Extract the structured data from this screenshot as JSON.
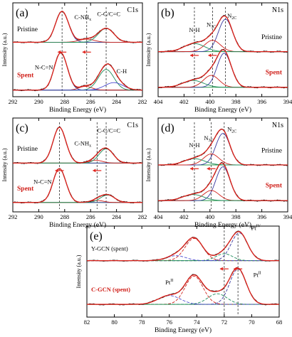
{
  "chart_data": [
    {
      "type": "line",
      "panel_label": "(a)",
      "element": "C1s",
      "xlabel": "Binding Energy (eV)",
      "ylabel": "Intensity (a.u.)",
      "xlim": [
        292,
        282
      ],
      "xticks": [
        292,
        290,
        288,
        286,
        284,
        282
      ],
      "peak_positions": [
        288.2,
        286.3,
        284.8
      ],
      "peak_labels": [
        {
          "text": "N-C=N",
          "x": 289.6,
          "trace": 1,
          "rel_y": 0.55
        },
        {
          "text": "C-NH",
          "sub": "x",
          "x": 286.6,
          "trace": 0,
          "rel_y": 0.75
        },
        {
          "text": "C-C/C=C",
          "x": 284.6,
          "trace": 0,
          "rel_y": 0.85
        },
        {
          "text": "C-H",
          "x": 283.6,
          "trace": 1,
          "rel_y": 0.45
        }
      ],
      "series": [
        {
          "name": "Pristine",
          "label_color": "#000000",
          "peaks": [
            [
              288.2,
              1.0,
              0.5
            ],
            [
              286.3,
              0.1,
              0.6
            ],
            [
              284.8,
              0.45,
              0.6
            ]
          ]
        },
        {
          "name": "Spent",
          "label_color": "#d0201a",
          "peaks": [
            [
              288.3,
              1.0,
              0.5
            ],
            [
              286.4,
              0.1,
              0.5
            ],
            [
              284.8,
              0.55,
              0.6
            ],
            [
              284.2,
              0.2,
              0.7
            ]
          ]
        }
      ]
    },
    {
      "type": "line",
      "panel_label": "(b)",
      "element": "N1s",
      "xlabel": "Binding Energy (eV)",
      "ylabel": "Intensity (a.u.)",
      "xlim": [
        404,
        394
      ],
      "xticks": [
        404,
        402,
        400,
        398,
        396,
        394
      ],
      "peak_positions": [
        401.2,
        399.8,
        398.8
      ],
      "peak_labels": [
        {
          "text": "N-H",
          "x": 401.2,
          "trace": 0,
          "rel_y": 0.55
        },
        {
          "text": "N",
          "sub": "3C",
          "x": 399.9,
          "trace": 0,
          "rel_y": 0.7
        },
        {
          "text": "N",
          "sub": "2C",
          "x": 398.3,
          "trace": 0,
          "rel_y": 0.95
        }
      ],
      "series": [
        {
          "name": "Pristine",
          "label_color": "#000000",
          "peaks": [
            [
              398.8,
              1.0,
              0.55
            ],
            [
              399.8,
              0.35,
              0.6
            ],
            [
              401.2,
              0.25,
              0.8
            ]
          ]
        },
        {
          "name": "Spent",
          "label_color": "#d0201a",
          "peaks": [
            [
              398.9,
              1.0,
              0.55
            ],
            [
              399.9,
              0.35,
              0.6
            ],
            [
              401.3,
              0.2,
              0.8
            ]
          ]
        }
      ]
    },
    {
      "type": "line",
      "panel_label": "(c)",
      "element": "C1s",
      "xlabel": "Binding Energy (eV)",
      "ylabel": "Intensity (a.u.)",
      "xlim": [
        292,
        282
      ],
      "xticks": [
        292,
        290,
        288,
        286,
        284,
        282
      ],
      "peak_positions": [
        288.4,
        285.5,
        284.8
      ],
      "peak_labels": [
        {
          "text": "C-NH",
          "sub": "x",
          "x": 286.6,
          "trace": 0,
          "rel_y": 0.5
        },
        {
          "text": "C-C/C=C",
          "x": 284.6,
          "trace": 0,
          "rel_y": 0.85
        },
        {
          "text": "N-C=N",
          "x": 289.7,
          "trace": 1,
          "rel_y": 0.55
        }
      ],
      "series": [
        {
          "name": "Pristine",
          "label_color": "#000000",
          "peaks": [
            [
              288.4,
              1.0,
              0.5
            ],
            [
              285.6,
              0.08,
              0.5
            ],
            [
              284.8,
              0.4,
              0.55
            ]
          ]
        },
        {
          "name": "Spent",
          "label_color": "#d0201a",
          "peaks": [
            [
              288.4,
              1.0,
              0.5
            ],
            [
              285.5,
              0.06,
              0.5
            ],
            [
              284.7,
              0.22,
              0.55
            ]
          ]
        }
      ]
    },
    {
      "type": "line",
      "panel_label": "(d)",
      "element": "N1s",
      "xlabel": "Binding Energy (eV)",
      "ylabel": "Intensity (a.u.)",
      "xlim": [
        404,
        394
      ],
      "xticks": [
        404,
        402,
        400,
        398,
        396,
        394
      ],
      "peak_positions": [
        401.2,
        399.9,
        398.9
      ],
      "peak_labels": [
        {
          "text": "N-H",
          "x": 401.2,
          "trace": 0,
          "rel_y": 0.5
        },
        {
          "text": "N",
          "sub": "3C",
          "x": 400.1,
          "trace": 0,
          "rel_y": 0.7
        },
        {
          "text": "N",
          "sub": "2C",
          "x": 398.3,
          "trace": 0,
          "rel_y": 0.95
        }
      ],
      "series": [
        {
          "name": "Pristine",
          "label_color": "#000000",
          "peaks": [
            [
              399.0,
              1.0,
              0.55
            ],
            [
              399.9,
              0.35,
              0.6
            ],
            [
              401.2,
              0.2,
              0.8
            ]
          ]
        },
        {
          "name": "Spent",
          "label_color": "#d0201a",
          "peaks": [
            [
              399.0,
              1.0,
              0.55
            ],
            [
              399.9,
              0.3,
              0.6
            ],
            [
              401.3,
              0.18,
              0.8
            ]
          ]
        }
      ]
    },
    {
      "type": "line",
      "panel_label": "(e)",
      "element": "",
      "xlabel": "Binding Energy (eV)",
      "ylabel": "Intensity (a.u.)",
      "xlim": [
        82,
        68
      ],
      "xticks": [
        82,
        80,
        78,
        76,
        74,
        72,
        70,
        68
      ],
      "peak_positions": [
        72.0,
        71.0
      ],
      "peak_labels": [
        {
          "text": "Pt",
          "sup": "IV",
          "x": 69.7,
          "trace": 0,
          "rel_y": 1.05
        },
        {
          "text": "Pt",
          "sup": "II",
          "x": 76.0,
          "trace": 1,
          "rel_y": 0.55
        },
        {
          "text": "Pt",
          "sup": "II",
          "x": 69.6,
          "trace": 1,
          "rel_y": 0.75
        }
      ],
      "series": [
        {
          "name": "Y-GCN (spent)",
          "label_color": "#000000",
          "peaks": [
            [
              70.9,
              1.0,
              0.6
            ],
            [
              74.2,
              0.8,
              0.65
            ],
            [
              72.0,
              0.25,
              0.6
            ],
            [
              75.5,
              0.18,
              0.7
            ]
          ]
        },
        {
          "name": "C-GCN (spent)",
          "label_color": "#d0201a",
          "peaks": [
            [
              71.0,
              1.0,
              0.6
            ],
            [
              74.2,
              0.8,
              0.65
            ],
            [
              72.5,
              0.3,
              0.7
            ],
            [
              76.0,
              0.25,
              0.8
            ]
          ]
        }
      ]
    }
  ]
}
